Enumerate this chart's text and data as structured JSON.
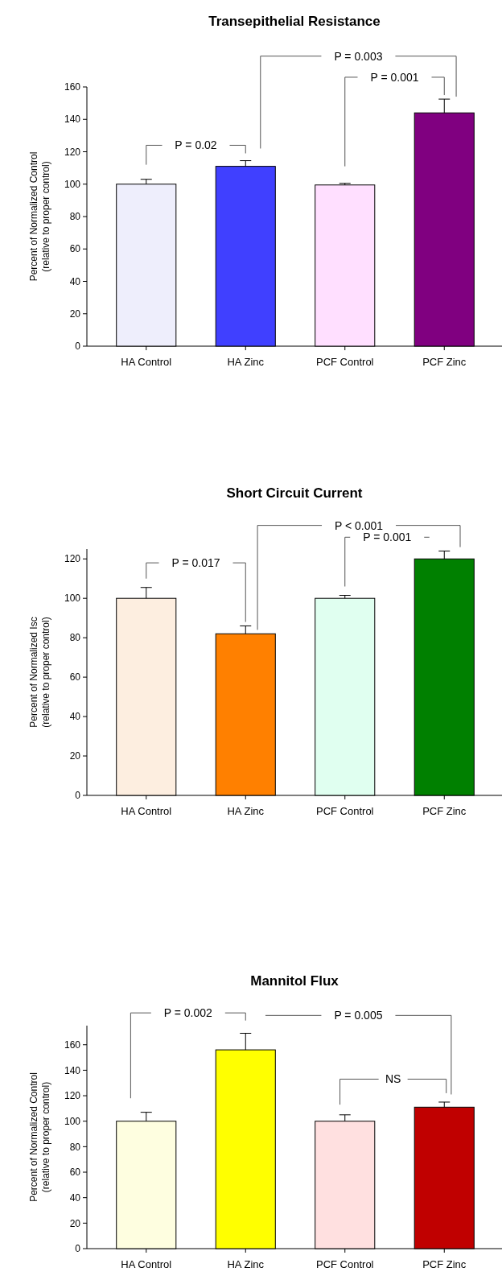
{
  "chart_data": [
    {
      "type": "bar",
      "title": "Transepithelial Resistance",
      "ylabel": "Percent of Normalized Control\n(relative to proper control)",
      "categories": [
        "HA Control",
        "HA Zinc",
        "PCF Control",
        "PCF Zinc"
      ],
      "values": [
        100,
        111,
        99.5,
        144
      ],
      "colors": [
        "#eeeefc",
        "#4040ff",
        "#ffdfff",
        "#800080"
      ],
      "errors": [
        3,
        3.5,
        1,
        8.5
      ],
      "ylim": [
        0,
        160
      ],
      "yticks": [
        0,
        20,
        40,
        60,
        80,
        100,
        120,
        140,
        160
      ],
      "annotations": [
        "P = 0.02",
        "P = 0.003",
        "P = 0.001"
      ]
    },
    {
      "type": "bar",
      "title": "Short Circuit Current",
      "ylabel": "Percent of Normalized Isc\n(relative to proper control)",
      "categories": [
        "HA Control",
        "HA Zinc",
        "PCF Control",
        "PCF Zinc"
      ],
      "values": [
        100,
        82,
        100,
        120
      ],
      "colors": [
        "#fdeee0",
        "#ff8000",
        "#e0fff0",
        "#008000"
      ],
      "errors": [
        5.5,
        4,
        1.5,
        4
      ],
      "ylim": [
        0,
        125
      ],
      "yticks": [
        0,
        20,
        40,
        60,
        80,
        100,
        120
      ],
      "annotations": [
        "P = 0.017",
        "P < 0.001",
        "P = 0.001"
      ]
    },
    {
      "type": "bar",
      "title": "Mannitol Flux",
      "ylabel": "Percent of Normalized Control\n(relative to proper control)",
      "categories": [
        "HA Control",
        "HA Zinc",
        "PCF Control",
        "PCF Zinc"
      ],
      "values": [
        100,
        156,
        100,
        111
      ],
      "colors": [
        "#fefee0",
        "#ffff00",
        "#ffe0e0",
        "#c00000"
      ],
      "errors": [
        7,
        13,
        5,
        4
      ],
      "ylim": [
        0,
        175
      ],
      "yticks": [
        0,
        20,
        40,
        60,
        80,
        100,
        120,
        140,
        160
      ],
      "annotations": [
        "P = 0.002",
        "P = 0.005",
        "NS"
      ]
    }
  ]
}
